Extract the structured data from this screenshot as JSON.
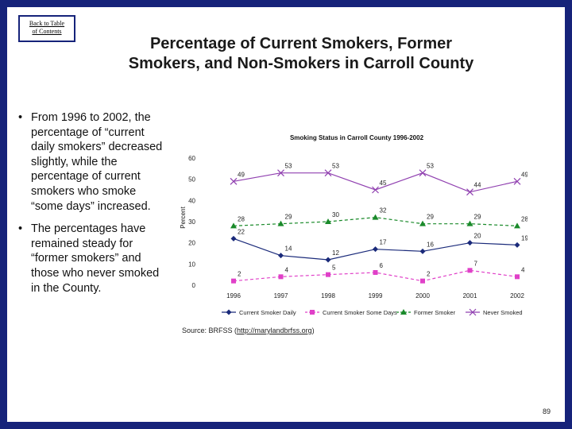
{
  "back_link": {
    "line1": "Back to Table",
    "line2": "of Contents"
  },
  "title": {
    "line1": "Percentage of Current Smokers, Former",
    "line2": "Smokers, and Non-Smokers in Carroll County"
  },
  "bullets": [
    "From 1996 to 2002, the percentage of “current daily smokers” decreased slightly, while the percentage of current smokers who smoke “some days” increased.",
    "The percentages have remained steady for “former smokers” and those who never smoked in the County."
  ],
  "bullet_symbol": "•",
  "source": {
    "prefix": "Source: BRFSS (",
    "link": "http://marylandbrfss.org",
    "suffix": ")"
  },
  "page_number": "89",
  "chart_data": {
    "type": "line",
    "title": "Smoking Status in Carroll County 1996-2002",
    "ylabel": "Percent",
    "xlabel": "",
    "ylim": [
      0,
      60
    ],
    "yticks": [
      0,
      10,
      20,
      30,
      40,
      50,
      60
    ],
    "categories": [
      "1996",
      "1997",
      "1998",
      "1999",
      "2000",
      "2001",
      "2002"
    ],
    "legend_position": "bottom",
    "grid": false,
    "series": [
      {
        "name": "Current Smoker Daily",
        "values": [
          22,
          14,
          12,
          17,
          16,
          20,
          19
        ],
        "color": "#1a2a7a",
        "marker": "diamond",
        "dash": "none"
      },
      {
        "name": "Current Smoker Some Days",
        "values": [
          2,
          4,
          5,
          6,
          2,
          7,
          4
        ],
        "color": "#e040c8",
        "marker": "square",
        "dash": "dash"
      },
      {
        "name": "Former Smoker",
        "values": [
          28,
          29,
          30,
          32,
          29,
          29,
          28
        ],
        "color": "#1a8a2a",
        "marker": "triangle",
        "dash": "dash"
      },
      {
        "name": "Never Smoked",
        "values": [
          49,
          53,
          53,
          45,
          53,
          44,
          49
        ],
        "color": "#9040b0",
        "marker": "x",
        "dash": "none"
      }
    ]
  }
}
